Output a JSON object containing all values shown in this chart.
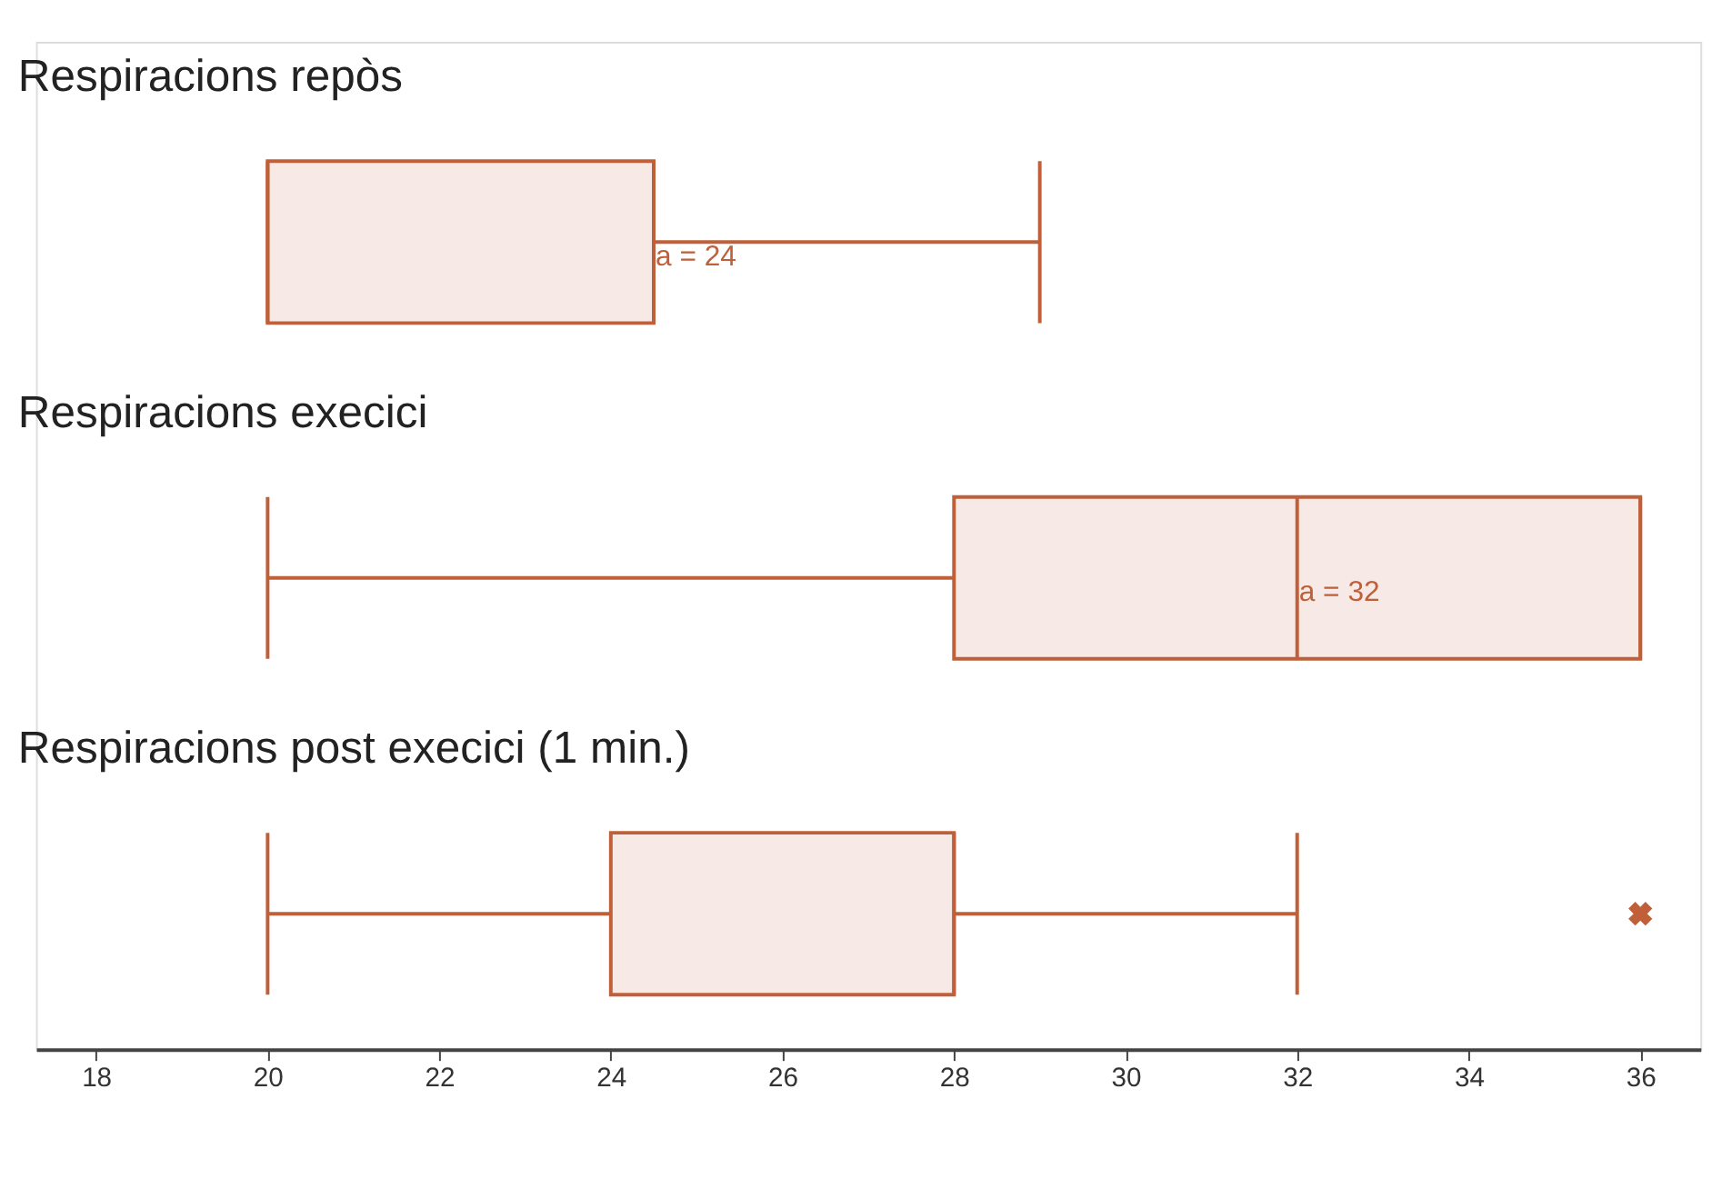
{
  "chart_data": {
    "type": "box",
    "orientation": "horizontal",
    "categories": [
      "Respiracions repòs",
      "Respiracions execici",
      "Respiracions post execici (1 min.)"
    ],
    "boxes": [
      {
        "low": 20,
        "q1": 20,
        "median": 24.5,
        "q3": 24.5,
        "high": 29
      },
      {
        "low": 20,
        "q1": 28,
        "median": 32,
        "q3": 36,
        "high": 36
      },
      {
        "low": 20,
        "q1": 24,
        "median": 28,
        "q3": 28,
        "high": 32,
        "outliers": [
          36
        ]
      }
    ],
    "color": "#c0603a",
    "xlim": [
      17.3,
      36.7
    ],
    "xticks": [
      18,
      20,
      22,
      24,
      26,
      28,
      30,
      32,
      34,
      36
    ],
    "annotations": [
      {
        "text": "a = 24",
        "x": 24.5,
        "y": "Respiracions repòs"
      },
      {
        "text": "a = 32",
        "x": 32,
        "y": "Respiracions execici"
      }
    ],
    "tick_labels": "x",
    "grid": false,
    "marker": "cross"
  }
}
